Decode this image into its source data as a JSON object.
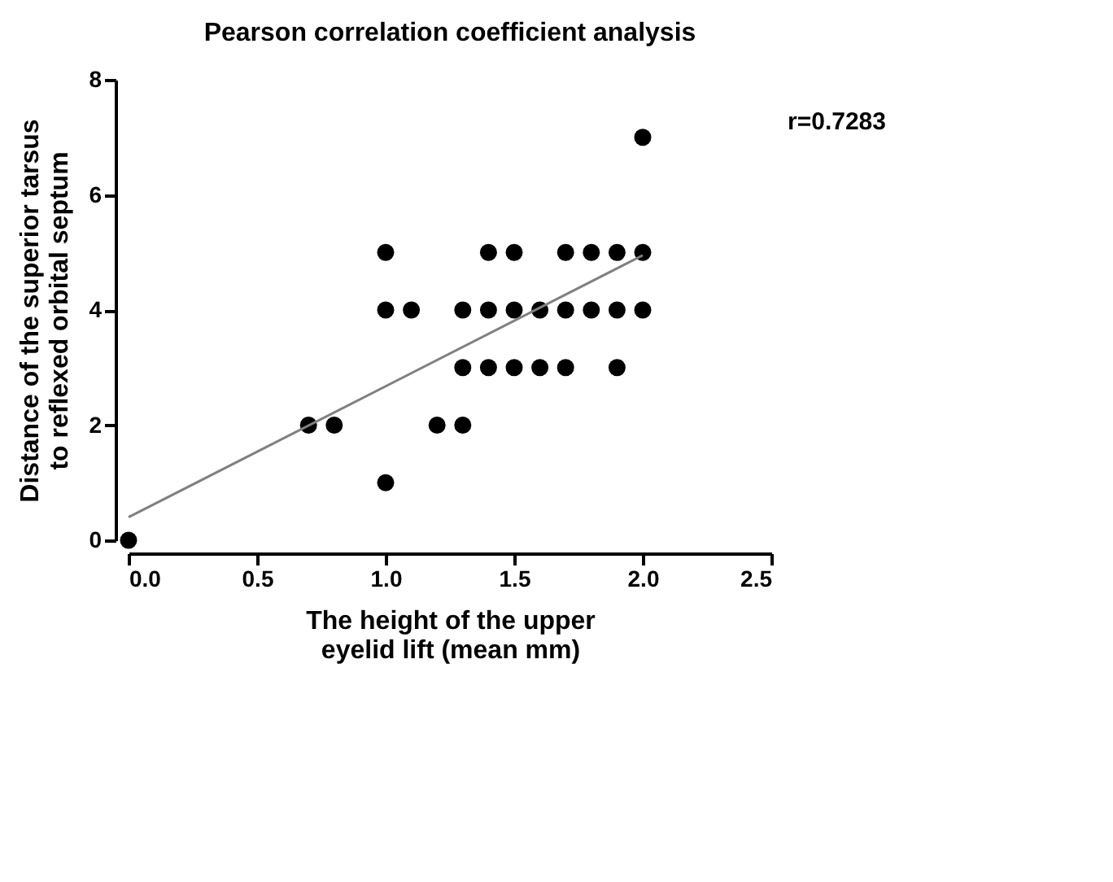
{
  "chart_data": {
    "type": "scatter",
    "title": "Pearson correlation coefficient analysis",
    "xlabel": "The height of the upper\neyelid lift (mean mm)",
    "ylabel": "Distance of the superior tarsus\nto reflexed orbital septum",
    "grid": false,
    "series": [
      {
        "marker": "circle",
        "color": "#000000",
        "x": [
          0,
          0.7,
          0.8,
          1.0,
          1.0,
          1.0,
          1.1,
          1.2,
          1.3,
          1.3,
          1.3,
          1.4,
          1.4,
          1.4,
          1.5,
          1.5,
          1.5,
          1.6,
          1.6,
          1.7,
          1.7,
          1.7,
          1.8,
          1.8,
          1.9,
          1.9,
          1.9,
          2.0,
          2.0,
          2.0
        ],
        "values": [
          0,
          2,
          2,
          1,
          4,
          5,
          4,
          2,
          2,
          3,
          4,
          3,
          4,
          5,
          3,
          4,
          5,
          3,
          4,
          3,
          4,
          5,
          4,
          5,
          3,
          4,
          5,
          4,
          5,
          7
        ]
      },
      {
        "type": "line",
        "marker": "none",
        "color": "#808080",
        "x": [
          0,
          2.0
        ],
        "values": [
          0.4,
          4.95
        ]
      }
    ],
    "xlim": [
      0,
      2.5
    ],
    "xticks": [
      {
        "value": 0,
        "label": "0.0"
      },
      {
        "value": 0.5,
        "label": "0.5"
      },
      {
        "value": 1,
        "label": "1.0"
      },
      {
        "value": 1.5,
        "label": "1.5"
      },
      {
        "value": 2,
        "label": "2.0"
      },
      {
        "value": 2.5,
        "label": "2.5"
      }
    ],
    "ylim": [
      0,
      8
    ],
    "yticks": [
      0,
      2,
      4,
      6,
      8
    ],
    "annotations": [
      "r=0.7283"
    ]
  }
}
